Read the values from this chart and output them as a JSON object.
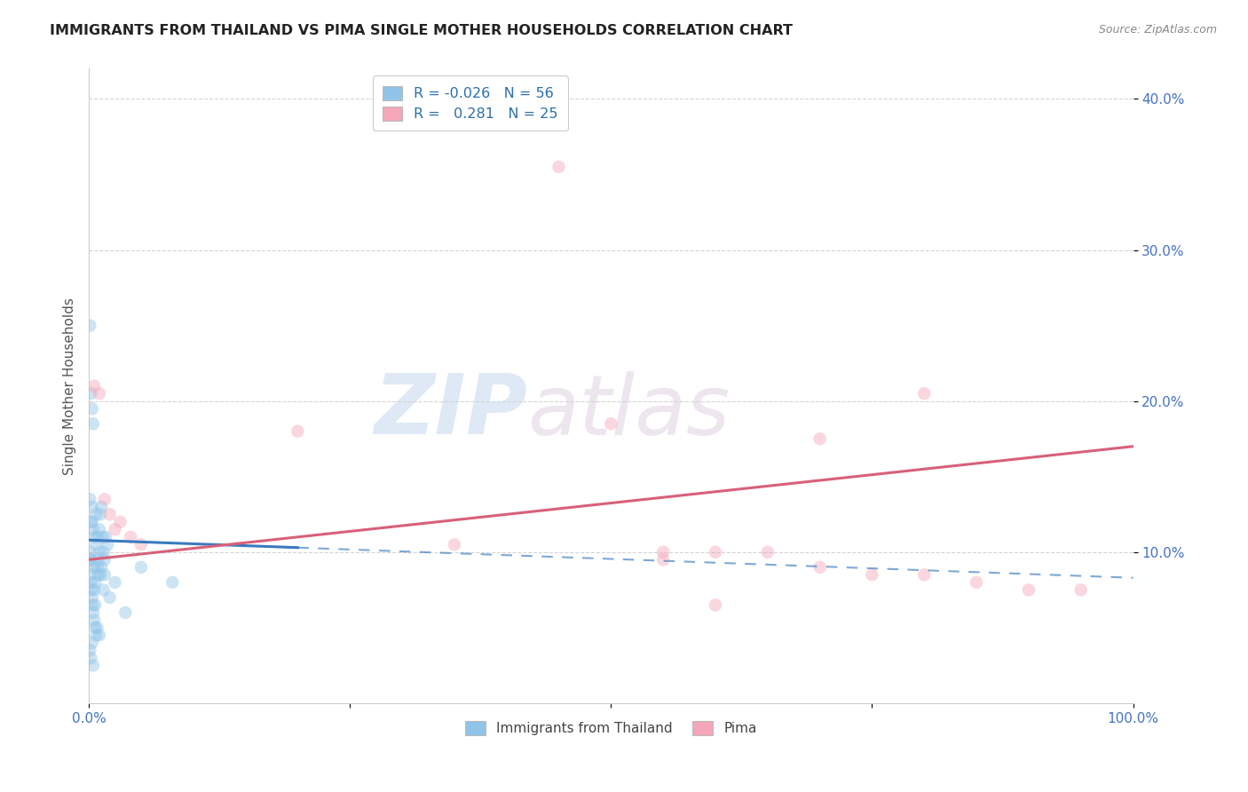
{
  "title": "IMMIGRANTS FROM THAILAND VS PIMA SINGLE MOTHER HOUSEHOLDS CORRELATION CHART",
  "source": "Source: ZipAtlas.com",
  "ylabel": "Single Mother Households",
  "legend_label1": "Immigrants from Thailand",
  "legend_label2": "Pima",
  "r1": "-0.026",
  "n1": "56",
  "r2": "0.281",
  "n2": "25",
  "blue_color": "#90c4e8",
  "pink_color": "#f4a7b9",
  "blue_line_color": "#3a7abf",
  "pink_line_color": "#d9607a",
  "watermark_zip": "ZIP",
  "watermark_atlas": "atlas",
  "blue_scatter_x": [
    0.1,
    0.15,
    0.2,
    0.25,
    0.3,
    0.35,
    0.4,
    0.5,
    0.6,
    0.7,
    0.8,
    0.9,
    1.0,
    1.1,
    1.2,
    1.3,
    1.4,
    1.5,
    1.6,
    1.8,
    0.1,
    0.2,
    0.3,
    0.4,
    0.5,
    0.6,
    0.7,
    0.8,
    1.0,
    1.2,
    0.1,
    0.2,
    0.3,
    0.4,
    0.5,
    0.6,
    0.8,
    1.0,
    1.5,
    2.0,
    0.1,
    0.2,
    0.3,
    0.5,
    0.7,
    0.9,
    1.1,
    1.4,
    2.5,
    3.5,
    0.1,
    0.2,
    0.3,
    0.4,
    5.0,
    8.0
  ],
  "blue_scatter_y": [
    9.5,
    8.5,
    8.0,
    7.5,
    7.0,
    6.5,
    6.0,
    5.5,
    5.0,
    4.5,
    9.0,
    8.5,
    11.5,
    12.5,
    13.0,
    11.0,
    10.0,
    9.5,
    11.0,
    10.5,
    10.0,
    9.5,
    12.0,
    11.5,
    9.0,
    8.0,
    12.5,
    11.0,
    10.0,
    9.0,
    3.5,
    3.0,
    4.0,
    2.5,
    7.5,
    6.5,
    5.0,
    4.5,
    8.5,
    7.0,
    13.5,
    12.0,
    13.0,
    11.0,
    10.5,
    9.5,
    8.5,
    7.5,
    8.0,
    6.0,
    25.0,
    20.5,
    19.5,
    18.5,
    9.0,
    8.0
  ],
  "pink_scatter_x": [
    0.5,
    1.0,
    1.5,
    2.0,
    2.5,
    3.0,
    4.0,
    5.0,
    20.0,
    45.0,
    50.0,
    55.0,
    60.0,
    65.0,
    70.0,
    75.0,
    80.0,
    85.0,
    90.0,
    95.0,
    35.0,
    55.0,
    70.0,
    80.0,
    60.0
  ],
  "pink_scatter_y": [
    21.0,
    20.5,
    13.5,
    12.5,
    11.5,
    12.0,
    11.0,
    10.5,
    18.0,
    35.5,
    18.5,
    10.0,
    10.0,
    10.0,
    17.5,
    8.5,
    8.5,
    8.0,
    7.5,
    7.5,
    10.5,
    9.5,
    9.0,
    20.5,
    6.5
  ],
  "blue_line_x0": 0,
  "blue_line_x1": 100,
  "blue_line_y0": 10.8,
  "blue_line_y1": 8.3,
  "blue_solid_end": 20,
  "pink_line_x0": 0,
  "pink_line_x1": 100,
  "pink_line_y0": 9.5,
  "pink_line_y1": 17.0,
  "xlim": [
    0,
    100
  ],
  "ylim": [
    0,
    42
  ],
  "ytick_vals": [
    10,
    20,
    30,
    40
  ],
  "ytick_labels": [
    "10.0%",
    "20.0%",
    "30.0%",
    "40.0%"
  ],
  "xtick_vals": [
    0,
    25,
    50,
    75,
    100
  ],
  "xtick_labels": [
    "0.0%",
    "",
    "",
    "",
    "100.0%"
  ],
  "grid_color": "#d0d0d0",
  "bg_color": "#ffffff",
  "marker_size": 110,
  "marker_alpha": 0.45,
  "title_fontsize": 11.5,
  "tick_fontsize": 11,
  "label_fontsize": 11
}
